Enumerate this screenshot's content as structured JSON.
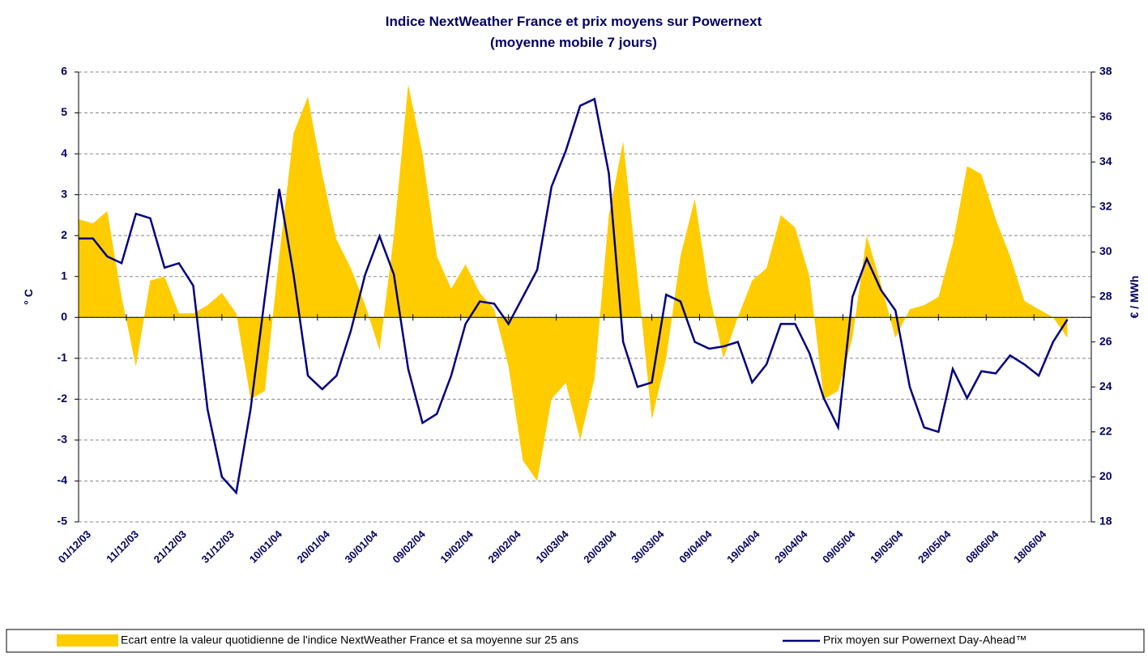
{
  "chart_data": {
    "type": "area_line",
    "title": "Indice NextWeather France et prix moyens sur Powernext",
    "subtitle": "(moyenne mobile 7 jours)",
    "y_label": "° C",
    "y2_label": "€ / MWh",
    "xlim": [
      "01/12/03",
      "30/06/04"
    ],
    "xticks": [
      "01/12/03",
      "11/12/03",
      "21/12/03",
      "31/12/03",
      "10/01/04",
      "20/01/04",
      "30/01/04",
      "09/02/04",
      "19/02/04",
      "29/02/04",
      "10/03/04",
      "20/03/04",
      "30/03/04",
      "09/04/04",
      "19/04/04",
      "29/04/04",
      "09/05/04",
      "19/05/04",
      "29/05/04",
      "08/06/04",
      "18/06/04"
    ],
    "ylim": [
      -5,
      6
    ],
    "yticks": [
      -5,
      -4,
      -3,
      -2,
      -1,
      0,
      1,
      2,
      3,
      4,
      5,
      6
    ],
    "y2lim": [
      18,
      38
    ],
    "y2ticks": [
      18,
      20,
      22,
      24,
      26,
      28,
      30,
      32,
      34,
      36,
      38
    ],
    "grid": true,
    "x": [
      "01/12/03",
      "04/12/03",
      "07/12/03",
      "10/12/03",
      "13/12/03",
      "16/12/03",
      "19/12/03",
      "22/12/03",
      "25/12/03",
      "28/12/03",
      "31/12/03",
      "03/01/04",
      "06/01/04",
      "09/01/04",
      "12/01/04",
      "15/01/04",
      "18/01/04",
      "21/01/04",
      "24/01/04",
      "27/01/04",
      "30/01/04",
      "02/02/04",
      "05/02/04",
      "08/02/04",
      "11/02/04",
      "14/02/04",
      "17/02/04",
      "20/02/04",
      "23/02/04",
      "26/02/04",
      "29/02/04",
      "03/03/04",
      "06/03/04",
      "09/03/04",
      "12/03/04",
      "15/03/04",
      "18/03/04",
      "21/03/04",
      "24/03/04",
      "27/03/04",
      "30/03/04",
      "02/04/04",
      "05/04/04",
      "08/04/04",
      "11/04/04",
      "14/04/04",
      "17/04/04",
      "20/04/04",
      "23/04/04",
      "26/04/04",
      "29/04/04",
      "02/05/04",
      "05/05/04",
      "08/05/04",
      "11/05/04",
      "14/05/04",
      "17/05/04",
      "20/05/04",
      "23/05/04",
      "26/05/04",
      "29/05/04",
      "01/06/04",
      "04/06/04",
      "07/06/04",
      "10/06/04",
      "13/06/04",
      "16/06/04",
      "19/06/04",
      "22/06/04",
      "25/06/04"
    ],
    "series": [
      {
        "name": "Ecart entre la valeur quotidienne de l'indice NextWeather France et sa moyenne sur 25 ans",
        "kind": "area",
        "color": "#ffcc00",
        "values": [
          2.4,
          2.3,
          2.6,
          0.5,
          -1.2,
          0.9,
          1.0,
          0.1,
          0.1,
          0.3,
          0.6,
          0.1,
          -2.0,
          -1.8,
          1.5,
          4.5,
          5.4,
          3.5,
          1.9,
          1.2,
          0.3,
          -0.8,
          2.0,
          5.7,
          4.0,
          1.5,
          0.7,
          1.3,
          0.6,
          0.2,
          -1.2,
          -3.5,
          -4.0,
          -2.0,
          -1.6,
          -3.0,
          -1.5,
          2.5,
          4.3,
          1.0,
          -2.5,
          -1.0,
          1.5,
          2.9,
          0.6,
          -1.0,
          0.0,
          0.9,
          1.2,
          2.5,
          2.2,
          1.0,
          -2.0,
          -1.8,
          -0.5,
          2.0,
          0.8,
          -0.5,
          0.2,
          0.3,
          0.5,
          1.8,
          3.7,
          3.5,
          2.4,
          1.5,
          0.4,
          0.2,
          0.0,
          -0.5
        ]
      },
      {
        "name": "Prix moyen sur Powernext Day-Ahead™",
        "kind": "line",
        "axis": "y2",
        "color": "#000080",
        "values": [
          30.6,
          30.6,
          29.8,
          29.5,
          31.7,
          31.5,
          29.3,
          29.5,
          28.5,
          23,
          20,
          19.3,
          23,
          28,
          32.8,
          29,
          24.5,
          23.9,
          24.5,
          26.5,
          29,
          30.7,
          29,
          24.8,
          22.4,
          22.8,
          24.5,
          26.8,
          27.8,
          27.7,
          26.8,
          28,
          29.2,
          32.9,
          34.5,
          36.5,
          36.8,
          33.5,
          26,
          24,
          24.2,
          28.1,
          27.8,
          26,
          25.7,
          25.8,
          26,
          24.2,
          25,
          26.8,
          26.8,
          25.5,
          23.5,
          22.2,
          28,
          29.7,
          28.3,
          27.4,
          24,
          22.2,
          22,
          24.8,
          23.5,
          24.7,
          24.6,
          25.4,
          25,
          24.5,
          26,
          27
        ]
      }
    ]
  }
}
